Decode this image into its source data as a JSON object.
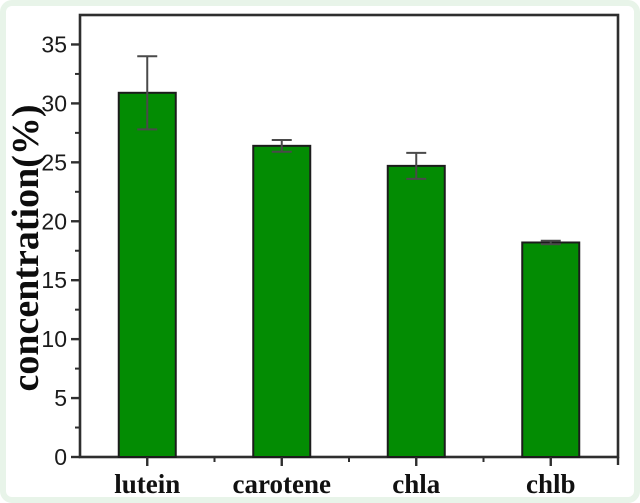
{
  "figure": {
    "kind": "scientific-bar-plot",
    "frame_border_color": "#e8f4e9",
    "plot_background": "#ffffff"
  },
  "chart_data": {
    "type": "bar",
    "title": "",
    "xlabel": "",
    "ylabel": "concentration(%)",
    "categories": [
      "lutein",
      "carotene",
      "chla",
      "chlb"
    ],
    "values": [
      30.9,
      26.4,
      24.7,
      18.2
    ],
    "errors": [
      3.1,
      0.5,
      1.1,
      0.15
    ],
    "ylim": [
      0,
      37.5
    ],
    "yticks": [
      0,
      5,
      10,
      15,
      20,
      25,
      30,
      35
    ],
    "minor_tick_step": 2.5,
    "grid": "off",
    "legend": "none",
    "bar_color": "#038c03",
    "bar_edge_color": "#1c1c1c",
    "error_bar_color": "#4a4a4a",
    "axis_color": "#2e2e2e",
    "tick_label_color": "#1b1b1b"
  }
}
